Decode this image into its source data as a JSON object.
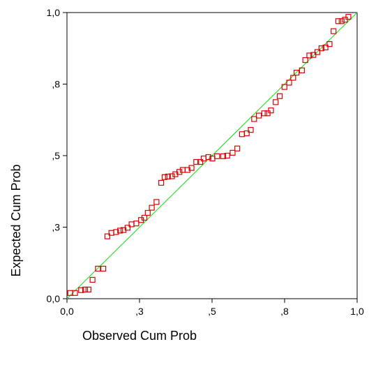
{
  "chart_data": {
    "type": "scatter",
    "title": "",
    "xlabel": "Observed Cum Prob",
    "ylabel": "Expected Cum Prob",
    "xlim": [
      0,
      1
    ],
    "ylim": [
      0,
      1
    ],
    "xticks": [
      {
        "value": 0.0,
        "label": "0,0"
      },
      {
        "value": 0.25,
        "label": ",3"
      },
      {
        "value": 0.5,
        "label": ",5"
      },
      {
        "value": 0.75,
        "label": ",8"
      },
      {
        "value": 1.0,
        "label": "1,0"
      }
    ],
    "yticks": [
      {
        "value": 0.0,
        "label": "0,0"
      },
      {
        "value": 0.25,
        "label": ",3"
      },
      {
        "value": 0.5,
        "label": ",5"
      },
      {
        "value": 0.75,
        "label": ",8"
      },
      {
        "value": 1.0,
        "label": "1,0"
      }
    ],
    "grid": false,
    "reference_line": {
      "from": [
        0,
        0
      ],
      "to": [
        1,
        1
      ],
      "color": "#33dd33"
    },
    "marker_color": "#dd0000",
    "points": [
      [
        0.0115,
        0.02
      ],
      [
        0.0278,
        0.02
      ],
      [
        0.0487,
        0.03
      ],
      [
        0.0626,
        0.032
      ],
      [
        0.0742,
        0.032
      ],
      [
        0.0881,
        0.066
      ],
      [
        0.1067,
        0.105
      ],
      [
        0.1253,
        0.105
      ],
      [
        0.1392,
        0.218
      ],
      [
        0.153,
        0.23
      ],
      [
        0.1693,
        0.233
      ],
      [
        0.1832,
        0.238
      ],
      [
        0.1948,
        0.24
      ],
      [
        0.2088,
        0.248
      ],
      [
        0.2226,
        0.26
      ],
      [
        0.2389,
        0.263
      ],
      [
        0.2552,
        0.275
      ],
      [
        0.2668,
        0.283
      ],
      [
        0.2784,
        0.3
      ],
      [
        0.2923,
        0.318
      ],
      [
        0.3086,
        0.338
      ],
      [
        0.3248,
        0.405
      ],
      [
        0.3364,
        0.425
      ],
      [
        0.348,
        0.427
      ],
      [
        0.3619,
        0.428
      ],
      [
        0.3735,
        0.435
      ],
      [
        0.3874,
        0.443
      ],
      [
        0.3991,
        0.45
      ],
      [
        0.4153,
        0.45
      ],
      [
        0.4292,
        0.457
      ],
      [
        0.4455,
        0.478
      ],
      [
        0.4594,
        0.478
      ],
      [
        0.471,
        0.49
      ],
      [
        0.4873,
        0.495
      ],
      [
        0.5012,
        0.49
      ],
      [
        0.5174,
        0.498
      ],
      [
        0.5384,
        0.498
      ],
      [
        0.5522,
        0.5
      ],
      [
        0.5708,
        0.51
      ],
      [
        0.587,
        0.525
      ],
      [
        0.6032,
        0.575
      ],
      [
        0.6195,
        0.578
      ],
      [
        0.6334,
        0.59
      ],
      [
        0.645,
        0.628
      ],
      [
        0.6613,
        0.64
      ],
      [
        0.6798,
        0.648
      ],
      [
        0.6914,
        0.648
      ],
      [
        0.7031,
        0.658
      ],
      [
        0.7193,
        0.687
      ],
      [
        0.7332,
        0.708
      ],
      [
        0.7495,
        0.74
      ],
      [
        0.7657,
        0.755
      ],
      [
        0.7796,
        0.772
      ],
      [
        0.7912,
        0.79
      ],
      [
        0.8098,
        0.798
      ],
      [
        0.8214,
        0.834
      ],
      [
        0.8353,
        0.85
      ],
      [
        0.8492,
        0.852
      ],
      [
        0.8631,
        0.862
      ],
      [
        0.877,
        0.875
      ],
      [
        0.8909,
        0.878
      ],
      [
        0.9049,
        0.89
      ],
      [
        0.9188,
        0.935
      ],
      [
        0.935,
        0.97
      ],
      [
        0.9466,
        0.97
      ],
      [
        0.9582,
        0.975
      ],
      [
        0.9698,
        0.985
      ]
    ]
  }
}
